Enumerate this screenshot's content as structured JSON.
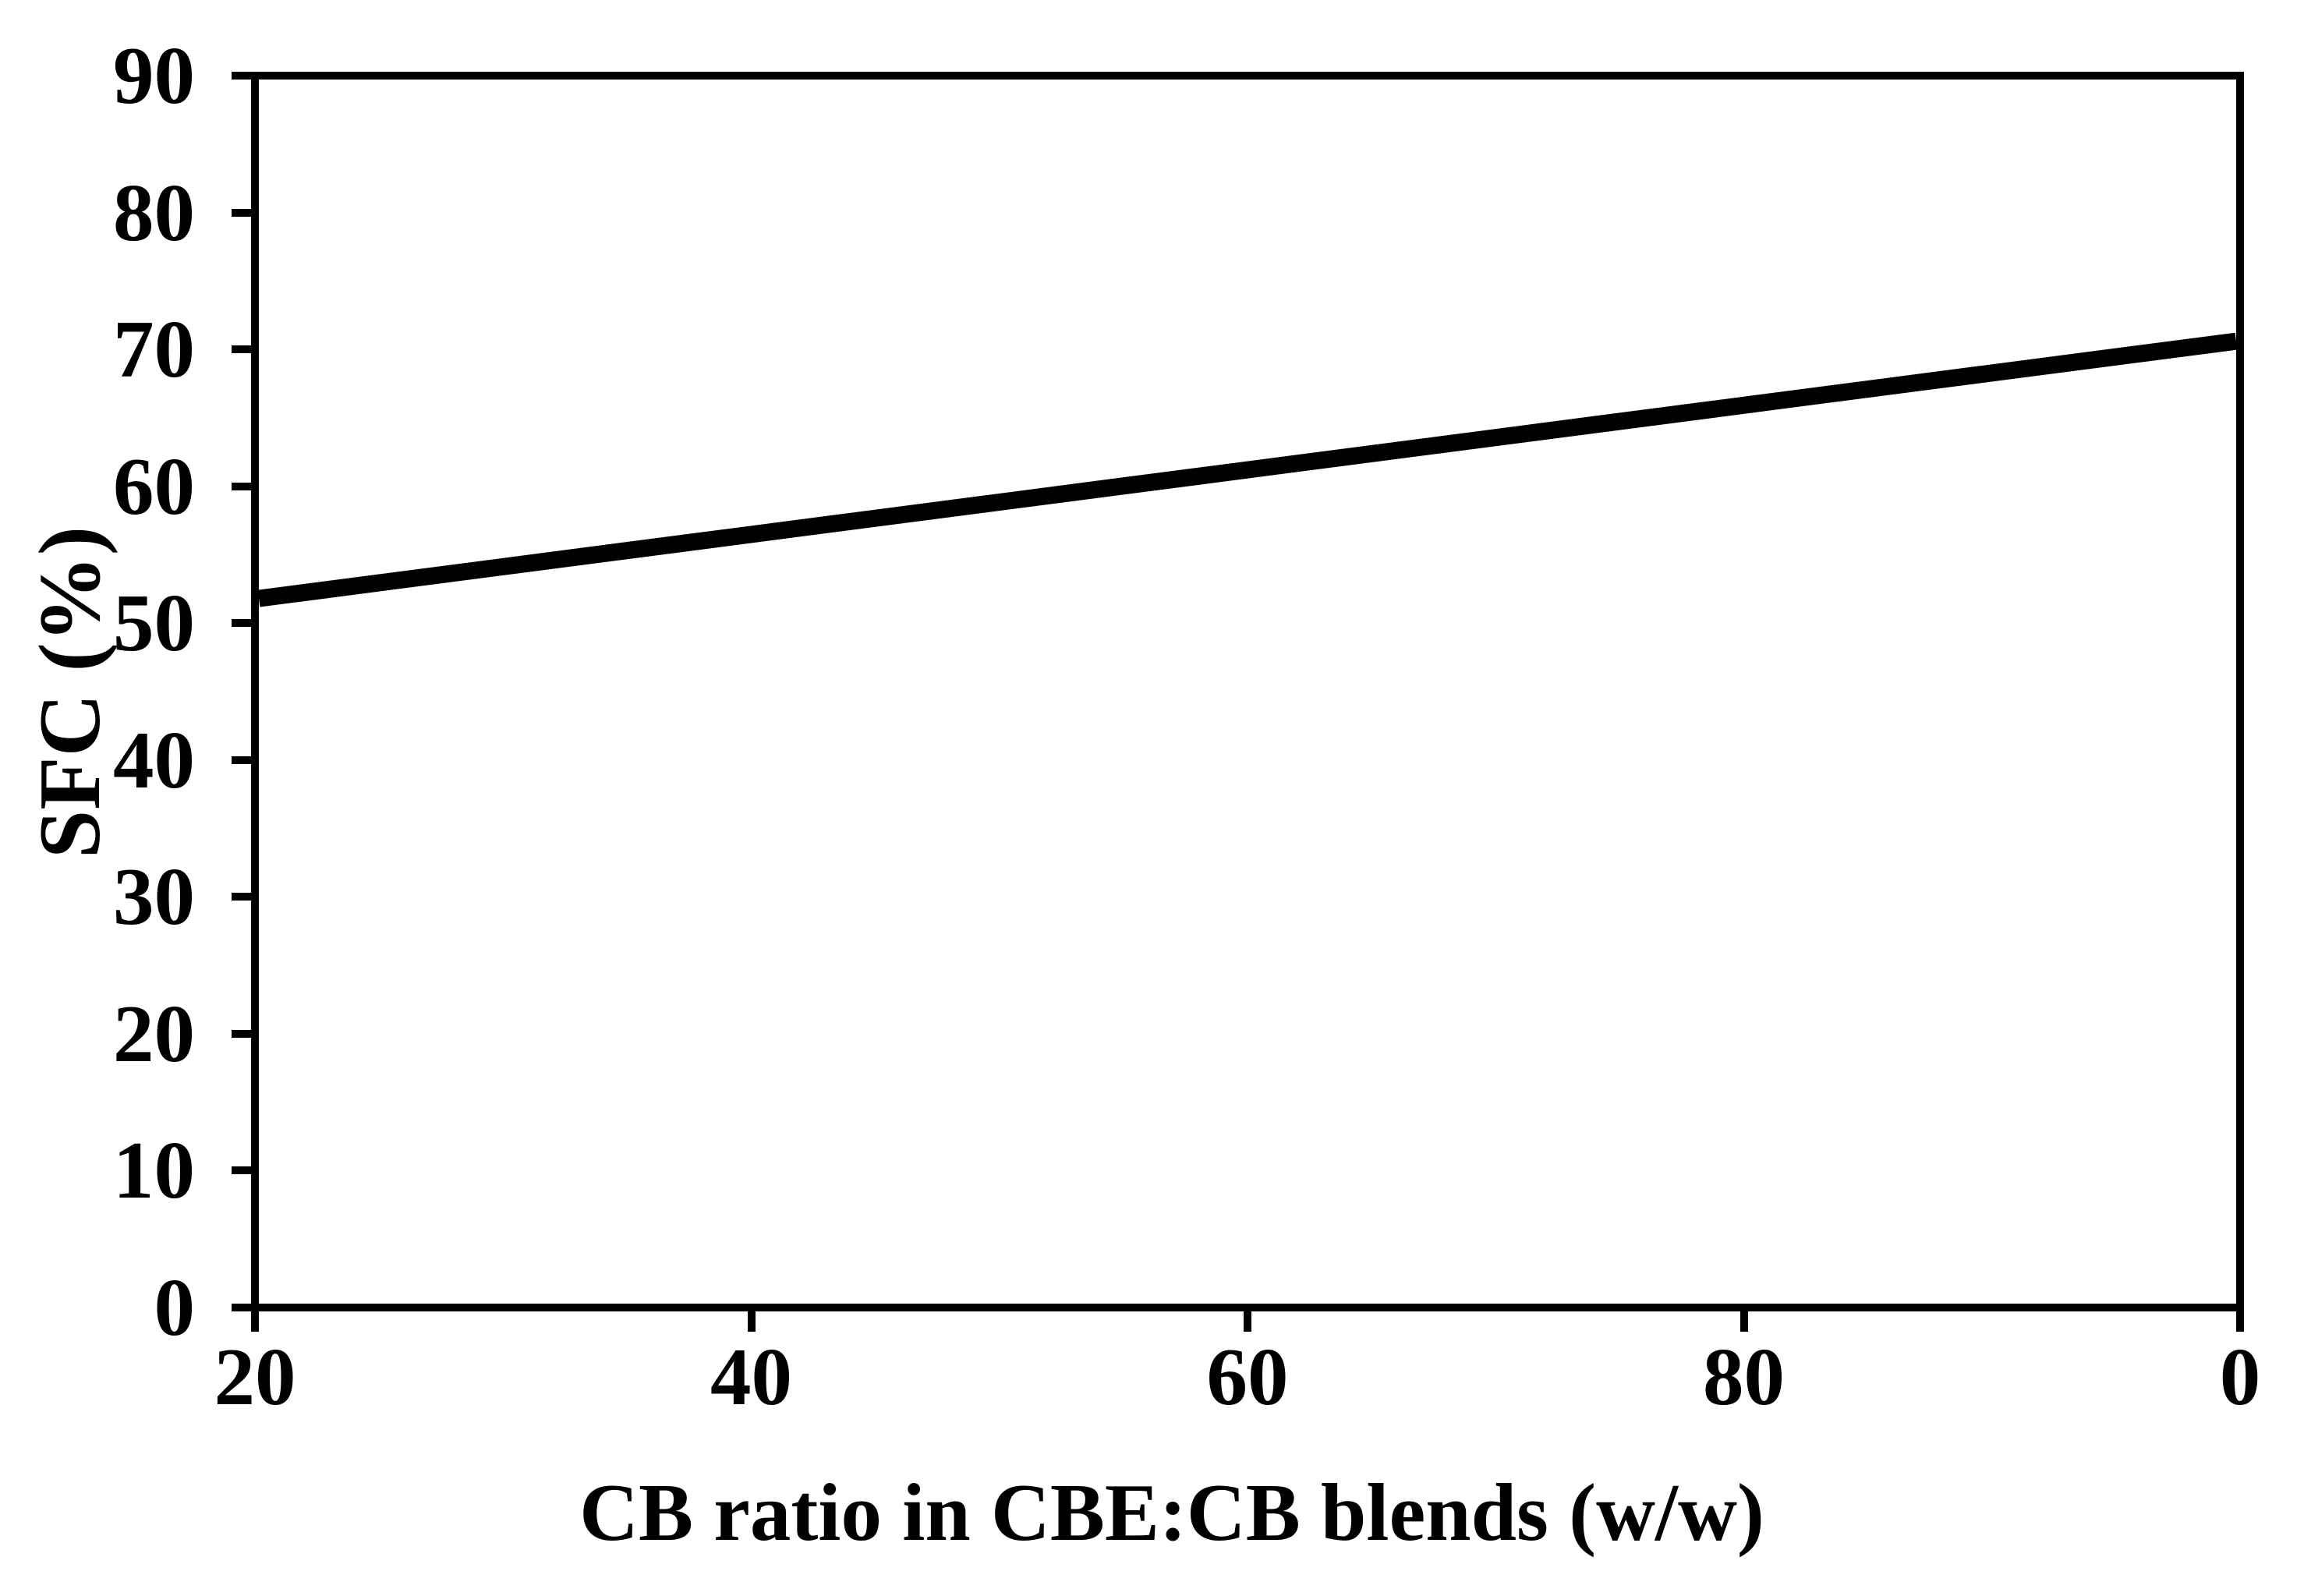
{
  "chart_data": {
    "type": "line",
    "title": "",
    "xlabel": "CB ratio in CBE:CB blends (w/w)",
    "ylabel": "SFC (%)",
    "x_tick_labels": [
      "20",
      "40",
      "60",
      "80",
      "0"
    ],
    "y_tick_labels": [
      "90",
      "80",
      "70",
      "60",
      "50",
      "40",
      "30",
      "20",
      "10",
      "0"
    ],
    "ylim": [
      0,
      90
    ],
    "grid": false,
    "legend": false,
    "layout_hints": {
      "ticks": "outside",
      "plot_border": "full box",
      "line_style": "thick solid straight"
    },
    "colors": {
      "line": "#000000",
      "axes": "#000000",
      "text": "#000000",
      "background": "#ffffff"
    },
    "series": [
      {
        "name": "SFC",
        "x": [
          "20",
          "40",
          "60",
          "80",
          "0"
        ],
        "values": [
          51.8,
          56.5,
          61.2,
          65.9,
          70.6
        ]
      }
    ]
  }
}
